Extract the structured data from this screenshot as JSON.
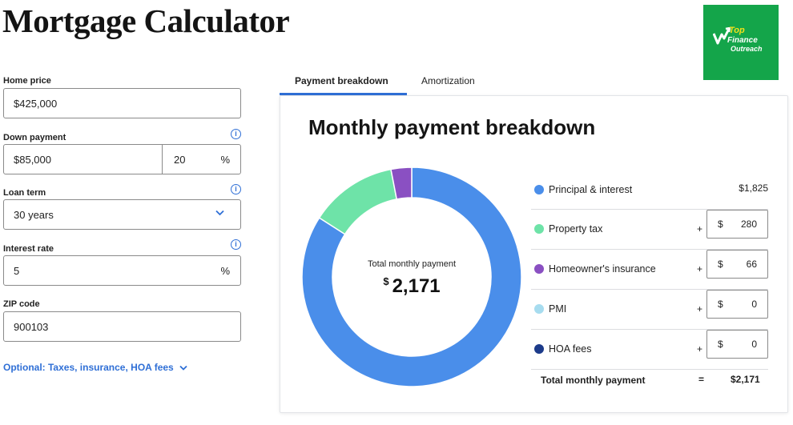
{
  "page_title": "Mortgage Calculator",
  "logo": {
    "line1": "Top",
    "line2": "Finance",
    "line3": "Outreach"
  },
  "form": {
    "home_price": {
      "label": "Home price",
      "value": "$425,000"
    },
    "down_payment": {
      "label": "Down payment",
      "value": "$85,000",
      "percent": "20",
      "percent_unit": "%"
    },
    "loan_term": {
      "label": "Loan term",
      "value": "30 years"
    },
    "interest_rate": {
      "label": "Interest rate",
      "value": "5",
      "unit": "%"
    },
    "zip_code": {
      "label": "ZIP code",
      "value": "900103"
    },
    "info_icon_glyph": "i",
    "optional_link": "Optional: Taxes, insurance, HOA fees"
  },
  "tabs": {
    "active": "Payment breakdown",
    "inactive": "Amortization"
  },
  "breakdown": {
    "title": "Monthly payment breakdown",
    "center_label": "Total monthly payment",
    "center_currency": "$",
    "center_value": "2,171",
    "plus_sign": "+",
    "currency": "$",
    "items": [
      {
        "name": "Principal & interest",
        "value": "$1,825",
        "color": "#4a8eea"
      },
      {
        "name": "Property tax",
        "value": "280",
        "color": "#6ee3a8"
      },
      {
        "name": "Homeowner's insurance",
        "value": "66",
        "color": "#8a50c2"
      },
      {
        "name": "PMI",
        "value": "0",
        "color": "#a7dcef"
      },
      {
        "name": "HOA fees",
        "value": "0",
        "color": "#1c3b8a"
      }
    ],
    "total_label": "Total monthly payment",
    "total_eq": "=",
    "total_value": "$2,171"
  },
  "chart_data": {
    "type": "pie",
    "categories": [
      "Principal & interest",
      "Property tax",
      "Homeowner's insurance",
      "PMI",
      "HOA fees"
    ],
    "values": [
      1825,
      280,
      66,
      0,
      0
    ],
    "colors": [
      "#4a8eea",
      "#6ee3a8",
      "#8a50c2",
      "#a7dcef",
      "#1c3b8a"
    ]
  }
}
